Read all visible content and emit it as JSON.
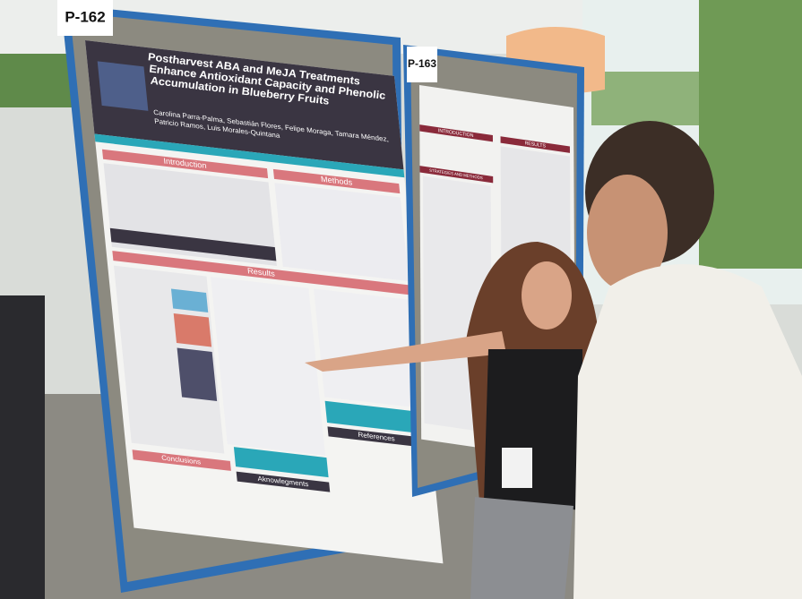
{
  "posters": [
    {
      "label": "P-162",
      "title": "Postharvest ABA and MeJA Treatments Enhance Antioxidant Capacity and Phenolic Accumulation in Blueberry Fruits",
      "authors": "Carolina Parra-Palma, Sebastián Flores, Felipe Moraga, Tamara Méndez, Patricio Ramos, Luis Morales-Quintana",
      "sections": [
        "Introduction",
        "Methods",
        "Results",
        "Conclusions",
        "Aknowlegments",
        "References"
      ]
    },
    {
      "label": "P-163",
      "sections": [
        "INTRODUCTION",
        "RESULTS",
        "STRATEGIES AND METHODS"
      ]
    }
  ]
}
